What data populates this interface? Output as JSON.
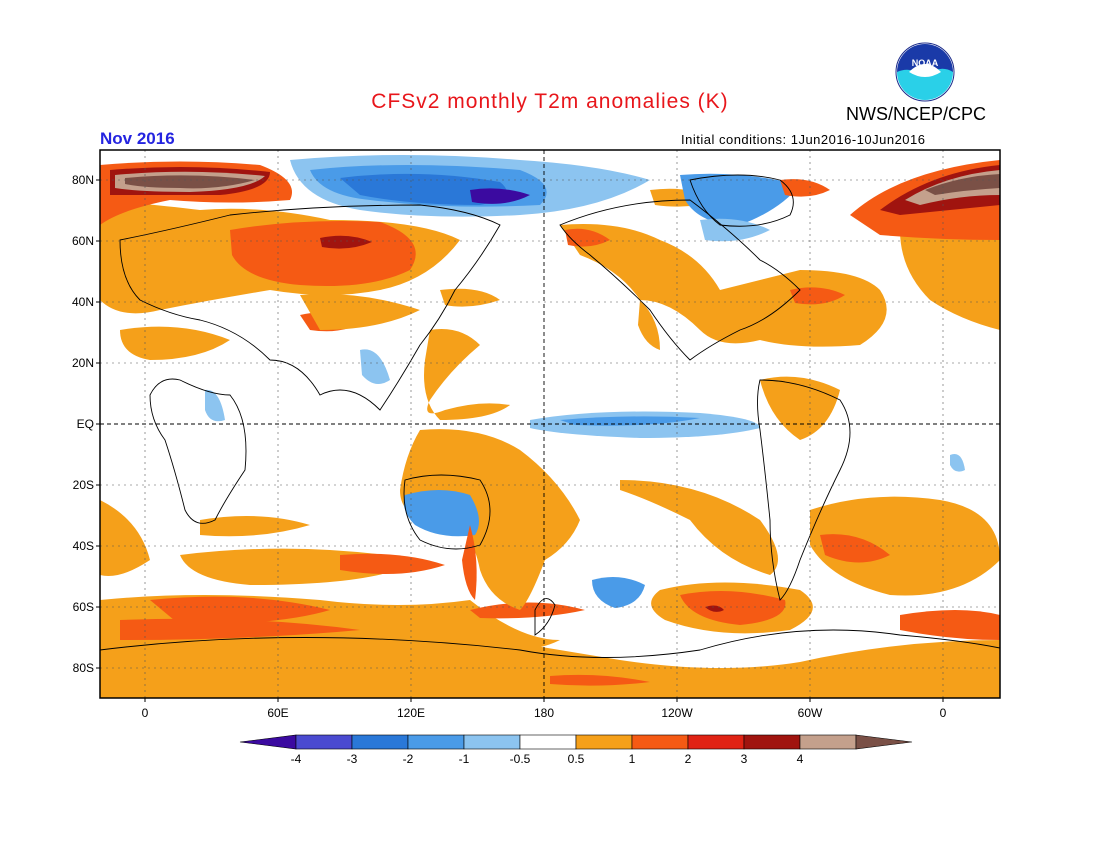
{
  "header": {
    "title": "CFSv2 monthly T2m anomalies (K)",
    "agency": "NWS/NCEP/CPC",
    "month": "Nov 2016",
    "initial_conditions": "Initial conditions: 1Jun2016-10Jun2016",
    "logo_text": "NOAA"
  },
  "map": {
    "lat_labels": [
      "80N",
      "60N",
      "40N",
      "20N",
      "EQ",
      "20S",
      "40S",
      "60S",
      "80S"
    ],
    "lon_labels": [
      "0",
      "60E",
      "120E",
      "180",
      "120W",
      "60W",
      "0"
    ],
    "colors": {
      "cold4": "#3b0aa0",
      "cold3": "#4a4ad0",
      "cold2": "#2a78d8",
      "cold1": "#4a9be8",
      "cool": "#8cc4f0",
      "neutral": "#ffffff",
      "warm": "#f5a01a",
      "warm1": "#f55a14",
      "warm2": "#e02314",
      "warm3": "#a0140f",
      "warm4": "#c4a08c",
      "extreme": "#7a5046"
    }
  },
  "colorbar": {
    "labels": [
      "-4",
      "-3",
      "-2",
      "-1",
      "-0.5",
      "0.5",
      "1",
      "2",
      "3",
      "4"
    ],
    "colors": [
      "#3b0aa0",
      "#4a4ad0",
      "#2a78d8",
      "#4a9be8",
      "#8cc4f0",
      "#ffffff",
      "#f5a01a",
      "#f55a14",
      "#e02314",
      "#a0140f",
      "#c4a08c",
      "#7a5046"
    ]
  }
}
